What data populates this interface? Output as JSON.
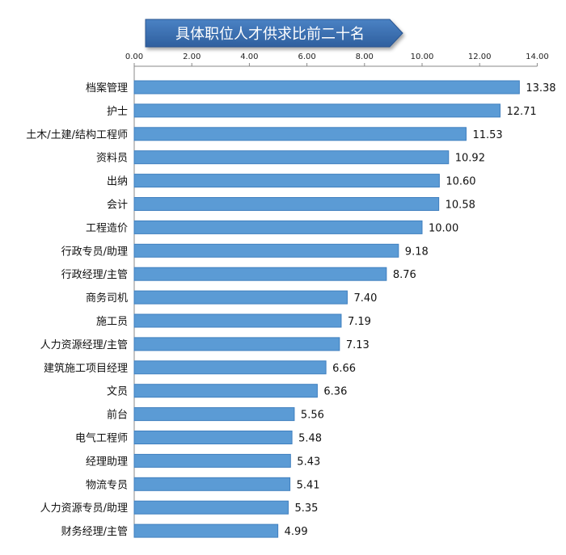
{
  "chart_data": {
    "type": "bar",
    "orientation": "horizontal",
    "title": "具体职位人才供求比前二十名",
    "xlim": [
      0,
      14
    ],
    "x_ticks": [
      "0.00",
      "2.00",
      "4.00",
      "6.00",
      "8.00",
      "10.00",
      "12.00",
      "14.00"
    ],
    "x_tick_values": [
      0,
      2,
      4,
      6,
      8,
      10,
      12,
      14
    ],
    "x_axis_position": "top",
    "grid": false,
    "legend": "none",
    "categories": [
      "档案管理",
      "护士",
      "土木/土建/结构工程师",
      "资料员",
      "出纳",
      "会计",
      "工程造价",
      "行政专员/助理",
      "行政经理/主管",
      "商务司机",
      "施工员",
      "人力资源经理/主管",
      "建筑施工项目经理",
      "文员",
      "前台",
      "电气工程师",
      "经理助理",
      "物流专员",
      "人力资源专员/助理",
      "财务经理/主管"
    ],
    "values": [
      13.38,
      12.71,
      11.53,
      10.92,
      10.6,
      10.58,
      10.0,
      9.18,
      8.76,
      7.4,
      7.19,
      7.13,
      6.66,
      6.36,
      5.56,
      5.48,
      5.43,
      5.41,
      5.35,
      4.99
    ],
    "value_labels": [
      "13.38",
      "12.71",
      "11.53",
      "10.92",
      "10.60",
      "10.58",
      "10.00",
      "9.18",
      "8.76",
      "7.40",
      "7.19",
      "7.13",
      "6.66",
      "6.36",
      "5.56",
      "5.48",
      "5.43",
      "5.41",
      "5.35",
      "4.99"
    ],
    "colors": {
      "bar_fill": "#5b9bd5",
      "bar_stroke": "#3f7fbf",
      "title_fill": "#3a6fb0",
      "title_stroke": "#2a5590",
      "axis": "#888888"
    }
  }
}
